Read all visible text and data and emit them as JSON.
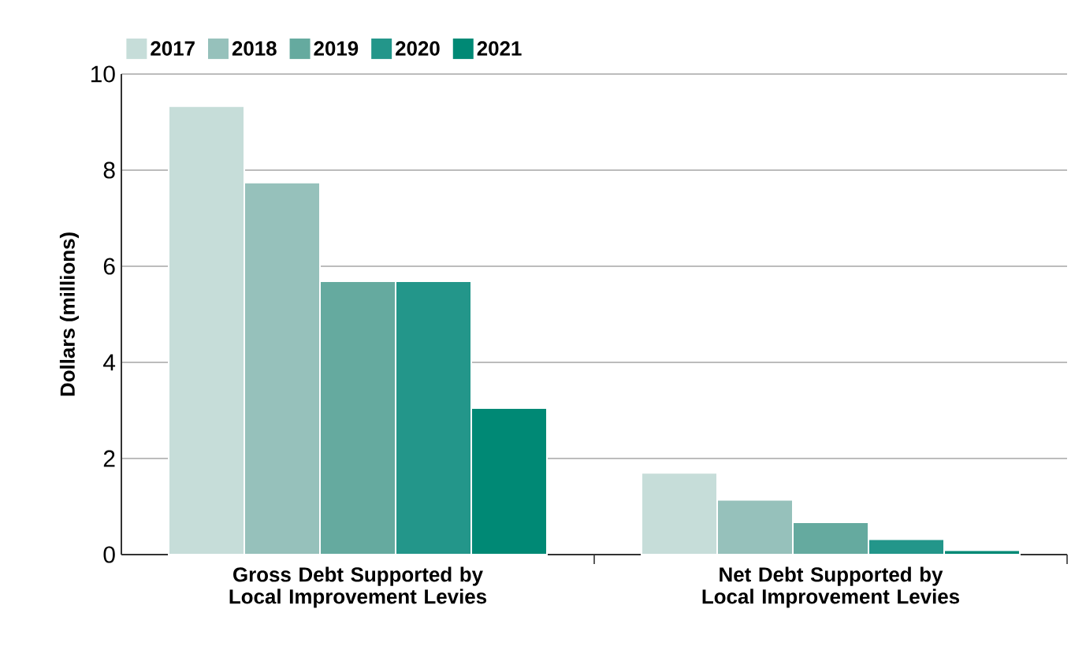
{
  "chart_data": {
    "type": "bar",
    "ylabel": "Dollars (millions)",
    "categories": [
      "Gross Debt Supported by Local Improvement Levies",
      "Net Debt Supported by Local Improvement Levies"
    ],
    "series": [
      {
        "name": "2017",
        "color": "#c6ddd9",
        "values": [
          9.33,
          1.7
        ]
      },
      {
        "name": "2018",
        "color": "#96c1bb",
        "values": [
          7.74,
          1.14
        ]
      },
      {
        "name": "2019",
        "color": "#65aa9f",
        "values": [
          5.69,
          0.67
        ]
      },
      {
        "name": "2020",
        "color": "#23968a",
        "values": [
          5.69,
          0.32
        ]
      },
      {
        "name": "2021",
        "color": "#008975",
        "values": [
          3.05,
          0.09
        ]
      }
    ],
    "ylim": [
      0,
      10
    ],
    "yticks": [
      0,
      2,
      4,
      6,
      8,
      10
    ],
    "grid": "y",
    "legend": "top left"
  }
}
